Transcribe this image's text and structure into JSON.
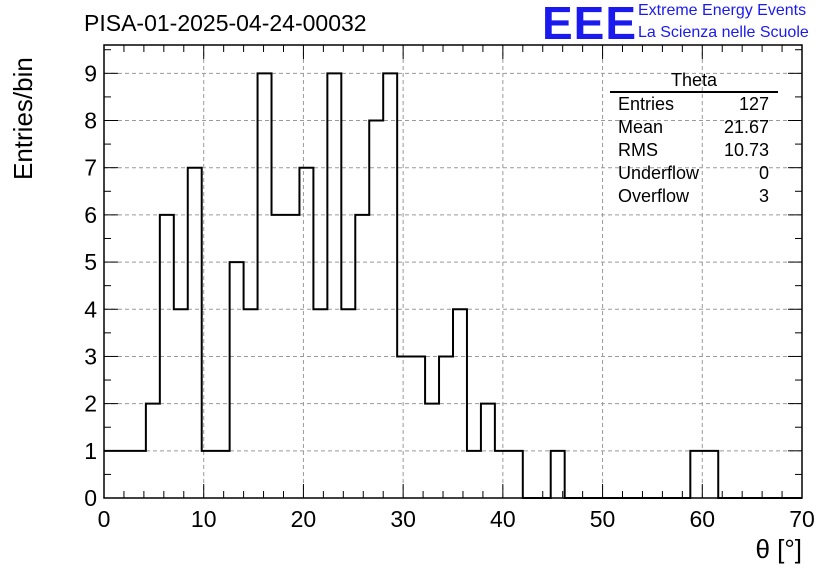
{
  "header": {
    "title": "PISA-01-2025-04-24-00032",
    "logo_mark": "EEE",
    "logo_line1": "Extreme Energy Events",
    "logo_line2": "La Scienza nelle Scuole",
    "logo_color": "#1a1aee"
  },
  "stats_box": {
    "title": "Theta",
    "rows": [
      {
        "label": "Entries",
        "value": "127"
      },
      {
        "label": "Mean",
        "value": "21.67"
      },
      {
        "label": "RMS",
        "value": "10.73"
      },
      {
        "label": "Underflow",
        "value": "0"
      },
      {
        "label": "Overflow",
        "value": "3"
      }
    ]
  },
  "chart_data": {
    "type": "bar",
    "style": "step-histogram",
    "title": "PISA-01-2025-04-24-00032",
    "xlabel": "θ [°]",
    "ylabel": "Entries/bin",
    "xlim": [
      0,
      70
    ],
    "ylim": [
      0,
      9.6
    ],
    "xticks": [
      0,
      10,
      20,
      30,
      40,
      50,
      60,
      70
    ],
    "yticks": [
      0,
      1,
      2,
      3,
      4,
      5,
      6,
      7,
      8,
      9
    ],
    "grid": true,
    "legend": "none",
    "bin_width": 1.4,
    "bin_start": 0,
    "values": [
      1,
      1,
      1,
      2,
      6,
      4,
      7,
      1,
      1,
      5,
      4,
      9,
      6,
      6,
      7,
      4,
      9,
      4,
      6,
      8,
      9,
      3,
      3,
      2,
      3,
      4,
      1,
      2,
      1,
      1,
      0,
      0,
      1,
      0,
      0,
      0,
      0,
      0,
      0,
      0,
      0,
      0,
      1,
      1,
      0,
      0,
      0,
      0,
      0,
      0
    ],
    "line_color": "#000000"
  }
}
